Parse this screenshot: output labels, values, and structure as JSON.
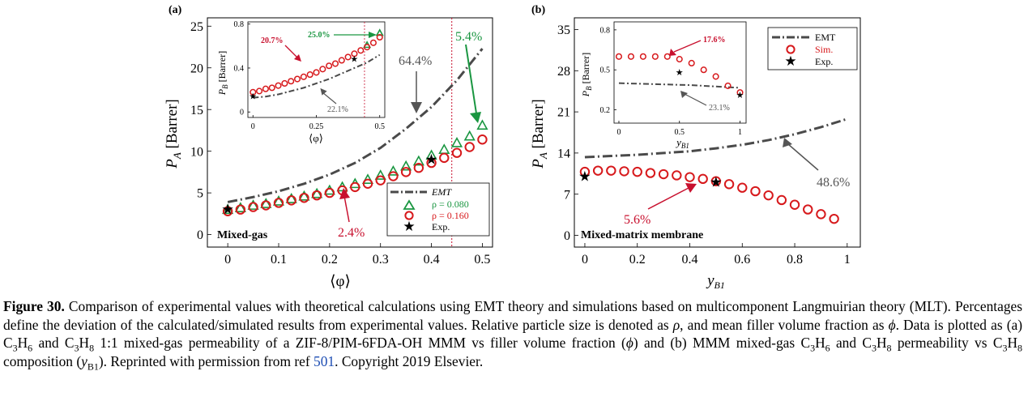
{
  "figure": {
    "panels": [
      {
        "label": "(a)",
        "tag": "Mixed-gas",
        "xlabel": "⟨φ⟩",
        "ylabel_main": "P",
        "ylabel_sub": "A",
        "ylabel_unit": " [Barrer]",
        "legend": [
          "EMT",
          "ρ = 0.080",
          "ρ = 0.160",
          "Exp."
        ],
        "annotations": {
          "emt": "64.4%",
          "green": "5.4%",
          "red": "2.4%"
        },
        "inset": {
          "xlabel": "⟨φ⟩",
          "ylabel_main": "P",
          "ylabel_sub": "B",
          "ylabel_unit": " [Barrer]",
          "annotations": {
            "red": "20.7%",
            "green": "25.0%",
            "emt": "22.1%"
          }
        }
      },
      {
        "label": "(b)",
        "tag": "Mixed-matrix membrane",
        "xlabel": "y",
        "xlabel_sub": "B1",
        "ylabel_main": "P",
        "ylabel_sub": "A",
        "ylabel_unit": " [Barrer]",
        "legend": [
          "EMT",
          "Sim.",
          "Exp."
        ],
        "annotations": {
          "emt": "48.6%",
          "red": "5.6%"
        },
        "inset": {
          "xlabel": "y",
          "xlabel_sub": "B1",
          "ylabel_main": "P",
          "ylabel_sub": "B",
          "ylabel_unit": " [Barrer]",
          "annotations": {
            "red": "17.6%",
            "emt": "23.1%"
          }
        }
      }
    ]
  },
  "caption": {
    "label": "Figure 30.",
    "t1": " Comparison of experimental values with theoretical calculations using EMT theory and simulations based on multicomponent Langmuirian theory (MLT). Percentages define the deviation of the calculated/simulated results from experimental values. Relative particle size is denoted as ",
    "rho": "ρ",
    "t2": ", and mean filler volume fraction as ",
    "phi": "ϕ",
    "t3": ". Data is plotted as (a) C",
    "s1": "3",
    "t4": "H",
    "s2": "6",
    "t5": " and C",
    "s3": "3",
    "t6": "H",
    "s4": "8",
    "t7": " 1:1 mixed-gas permeability of a ZIF-8/PIM-6FDA-OH MMM vs filler volume fraction (",
    "phi2": "ϕ",
    "t8": ") and (b) MMM mixed-gas C",
    "s5": "3",
    "t9": "H",
    "s6": "6",
    "t10": " and C",
    "s7": "3",
    "t11": "H",
    "s8": "8",
    "t12": " permeability vs C",
    "s9": "3",
    "t13": "H",
    "s10": "8",
    "t14": " composition (",
    "y": "y",
    "s11": "B1",
    "t15": "). Reprinted with permission from ref ",
    "ref": "501",
    "t16": ". Copyright 2019 Elsevier."
  },
  "chart_data": [
    {
      "type": "scatter",
      "panel": "a",
      "xlabel": "⟨φ⟩",
      "ylabel": "P_A [Barrer]",
      "xlim": [
        -0.04,
        0.52
      ],
      "ylim": [
        -1.5,
        26
      ],
      "xticks": [
        0,
        0.1,
        0.2,
        0.3,
        0.4,
        0.5
      ],
      "yticks": [
        0,
        5,
        10,
        15,
        20,
        25
      ],
      "vline": 0.44,
      "series": [
        {
          "name": "EMT",
          "style": "dashdot",
          "color": "#4a4a4a",
          "x": [
            0,
            0.05,
            0.1,
            0.15,
            0.2,
            0.25,
            0.3,
            0.35,
            0.4,
            0.45,
            0.5
          ],
          "y": [
            3.9,
            4.5,
            5.2,
            6.1,
            7.2,
            8.6,
            10.4,
            12.7,
            15.3,
            18.5,
            22.3
          ]
        },
        {
          "name": "ρ = 0.080",
          "marker": "triangle",
          "color": "#1a9641",
          "x": [
            0,
            0.025,
            0.05,
            0.075,
            0.1,
            0.125,
            0.15,
            0.175,
            0.2,
            0.225,
            0.25,
            0.275,
            0.3,
            0.325,
            0.35,
            0.375,
            0.4,
            0.425,
            0.45,
            0.475,
            0.5
          ],
          "y": [
            3.0,
            3.2,
            3.5,
            3.7,
            4.0,
            4.3,
            4.6,
            4.9,
            5.3,
            5.7,
            6.1,
            6.6,
            7.1,
            7.6,
            8.2,
            8.8,
            9.5,
            10.2,
            11.0,
            11.8,
            13.1
          ]
        },
        {
          "name": "ρ = 0.160",
          "marker": "circle",
          "color": "#d7191c",
          "x": [
            0,
            0.025,
            0.05,
            0.075,
            0.1,
            0.125,
            0.15,
            0.175,
            0.2,
            0.225,
            0.25,
            0.275,
            0.3,
            0.325,
            0.35,
            0.375,
            0.4,
            0.425,
            0.45,
            0.475,
            0.5
          ],
          "y": [
            2.8,
            3.0,
            3.3,
            3.5,
            3.8,
            4.1,
            4.4,
            4.7,
            5.0,
            5.3,
            5.7,
            6.1,
            6.5,
            7.0,
            7.5,
            8.0,
            8.6,
            9.2,
            9.8,
            10.5,
            11.4
          ]
        },
        {
          "name": "Exp.",
          "marker": "star",
          "color": "#000000",
          "x": [
            0,
            0.4
          ],
          "y": [
            3.0,
            9.0
          ]
        }
      ],
      "inset": {
        "xlabel": "⟨φ⟩",
        "ylabel": "P_B [Barrer]",
        "xlim": [
          -0.02,
          0.52
        ],
        "ylim": [
          -0.05,
          0.82
        ],
        "xticks": [
          0,
          0.25,
          0.5
        ],
        "xticklabels": [
          "0",
          "0.25",
          "0.5"
        ],
        "yticks": [
          0,
          0.4,
          0.8
        ],
        "yticklabels": [
          "0",
          "0.4",
          "0.8"
        ],
        "vline": 0.44,
        "series": [
          {
            "name": "EMT",
            "x": [
              0,
              0.05,
              0.1,
              0.15,
              0.2,
              0.25,
              0.3,
              0.35,
              0.4,
              0.45,
              0.5
            ],
            "y": [
              0.13,
              0.14,
              0.16,
              0.19,
              0.22,
              0.26,
              0.3,
              0.35,
              0.4,
              0.45,
              0.52
            ]
          },
          {
            "name": "ρ = 0.080",
            "x": [
              0.45,
              0.5
            ],
            "y": [
              0.61,
              0.72
            ]
          },
          {
            "name": "ρ = 0.160",
            "x": [
              0,
              0.025,
              0.05,
              0.075,
              0.1,
              0.125,
              0.15,
              0.175,
              0.2,
              0.225,
              0.25,
              0.275,
              0.3,
              0.325,
              0.35,
              0.375,
              0.4,
              0.425,
              0.45,
              0.475,
              0.5
            ],
            "y": [
              0.18,
              0.19,
              0.21,
              0.22,
              0.24,
              0.26,
              0.28,
              0.3,
              0.32,
              0.34,
              0.36,
              0.39,
              0.42,
              0.44,
              0.47,
              0.5,
              0.53,
              0.56,
              0.59,
              0.63,
              0.68
            ]
          },
          {
            "name": "Exp.",
            "x": [
              0,
              0.4
            ],
            "y": [
              0.14,
              0.48
            ]
          }
        ]
      }
    },
    {
      "type": "scatter",
      "panel": "b",
      "xlabel": "y_B1",
      "ylabel": "P_A [Barrer]",
      "xlim": [
        -0.04,
        1.05
      ],
      "ylim": [
        -2,
        37
      ],
      "xticks": [
        0,
        0.2,
        0.4,
        0.6,
        0.8,
        1
      ],
      "yticks": [
        0,
        7,
        14,
        21,
        28,
        35
      ],
      "series": [
        {
          "name": "EMT",
          "style": "dashdot",
          "color": "#4a4a4a",
          "x": [
            0,
            0.1,
            0.2,
            0.3,
            0.4,
            0.5,
            0.6,
            0.7,
            0.8,
            0.9,
            1.0
          ],
          "y": [
            13.3,
            13.5,
            13.7,
            14.0,
            14.3,
            14.8,
            15.4,
            16.2,
            17.2,
            18.4,
            19.8
          ]
        },
        {
          "name": "Sim.",
          "marker": "circle",
          "color": "#d7191c",
          "x": [
            0,
            0.05,
            0.1,
            0.15,
            0.2,
            0.25,
            0.3,
            0.35,
            0.4,
            0.45,
            0.5,
            0.55,
            0.6,
            0.65,
            0.7,
            0.75,
            0.8,
            0.85,
            0.9,
            0.95
          ],
          "y": [
            10.8,
            11.0,
            11.0,
            10.9,
            10.8,
            10.6,
            10.4,
            10.2,
            9.9,
            9.6,
            9.2,
            8.7,
            8.1,
            7.5,
            6.8,
            6.0,
            5.2,
            4.4,
            3.6,
            2.8
          ]
        },
        {
          "name": "Exp.",
          "marker": "star",
          "color": "#000000",
          "x": [
            0,
            0.5
          ],
          "y": [
            10.0,
            9.0
          ]
        }
      ],
      "inset": {
        "xlabel": "y_B1",
        "ylabel": "P_B [Barrer]",
        "xlim": [
          -0.04,
          1.05
        ],
        "ylim": [
          0.1,
          0.86
        ],
        "xticks": [
          0,
          0.5,
          1
        ],
        "xticklabels": [
          "0",
          "0.5",
          "1"
        ],
        "yticks": [
          0.2,
          0.5,
          0.8
        ],
        "yticklabels": [
          "0.2",
          "0.5",
          "0.8"
        ],
        "series": [
          {
            "name": "EMT",
            "x": [
              0,
              0.2,
              0.4,
              0.6,
              0.8,
              1.0
            ],
            "y": [
              0.4,
              0.395,
              0.39,
              0.385,
              0.375,
              0.365
            ]
          },
          {
            "name": "Sim.",
            "x": [
              0,
              0.1,
              0.2,
              0.3,
              0.4,
              0.5,
              0.6,
              0.7,
              0.8,
              0.9,
              1.0
            ],
            "y": [
              0.6,
              0.6,
              0.6,
              0.6,
              0.6,
              0.58,
              0.55,
              0.5,
              0.45,
              0.38,
              0.33
            ]
          },
          {
            "name": "Exp.",
            "x": [
              0.5,
              1.0
            ],
            "y": [
              0.48,
              0.31
            ]
          }
        ]
      }
    }
  ]
}
